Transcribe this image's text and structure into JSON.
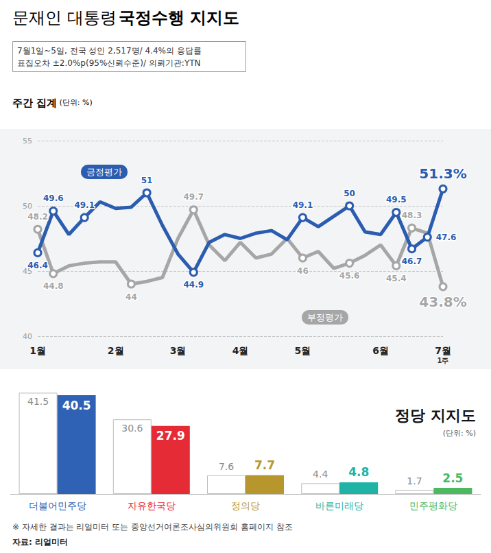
{
  "title_parts": [
    "문재인 대통령",
    "국정수행 지지도"
  ],
  "subtitle": [
    "7월1일~5일, 전국 성인 2,517명/ 4.4%의 응답률",
    "표집오차 ±2.0%p(95%신뢰수준)/ 의뢰기관:YTN"
  ],
  "chart_data": [
    {
      "type": "line",
      "title": "주간 집계",
      "unit": "(단위: %)",
      "categories": [
        "1월",
        null,
        null,
        null,
        null,
        "2월",
        null,
        null,
        null,
        "3월",
        null,
        null,
        null,
        "4월",
        null,
        null,
        null,
        "5월",
        null,
        null,
        null,
        null,
        "6월",
        null,
        null,
        null,
        "7월"
      ],
      "last_label_note": "1주",
      "ylim": [
        40,
        55
      ],
      "yticks": [
        40,
        45,
        50,
        55
      ],
      "grid": true,
      "data_labels": true,
      "series": [
        {
          "name": "긍정평가",
          "color": "#2a5cb0",
          "marker": "circle",
          "values": [
            46.4,
            49.6,
            47.8,
            49.1,
            50.3,
            49.8,
            49.9,
            51.0,
            48.5,
            46.3,
            44.9,
            47.2,
            47.8,
            47.5,
            47.9,
            48.1,
            47.4,
            49.1,
            48.4,
            49.2,
            50.0,
            48.0,
            47.8,
            49.5,
            46.7,
            47.6,
            51.3
          ],
          "value_labels": [
            "46.4",
            "49.6",
            null,
            "49.1",
            null,
            null,
            null,
            "51",
            null,
            null,
            "44.9",
            null,
            null,
            null,
            null,
            null,
            null,
            "49.1",
            null,
            null,
            "50",
            null,
            null,
            "49.5",
            "46.7",
            "47.6",
            "51.3%"
          ]
        },
        {
          "name": "부정평가",
          "color": "#a6a6a6",
          "marker": "circle",
          "values": [
            48.2,
            44.8,
            45.4,
            45.6,
            45.7,
            45.7,
            44.0,
            44.2,
            44.5,
            47.5,
            49.7,
            47.0,
            45.8,
            47.2,
            46.0,
            46.3,
            47.5,
            46.0,
            46.5,
            45.2,
            45.6,
            46.2,
            47.0,
            45.4,
            48.3,
            47.9,
            43.8
          ],
          "value_labels": [
            "48.2",
            "44.8",
            null,
            null,
            null,
            null,
            "44",
            null,
            null,
            null,
            "49.7",
            null,
            null,
            null,
            null,
            null,
            null,
            "46",
            null,
            null,
            "45.6",
            null,
            null,
            "45.4",
            "48.3",
            null,
            "43.8%"
          ]
        }
      ]
    },
    {
      "type": "bar",
      "title": "정당 지지도",
      "unit": "(단위: %)",
      "categories": [
        "더불어민주당",
        "자유한국당",
        "정의당",
        "바른미래당",
        "민주평화당"
      ],
      "ylim": [
        0,
        45
      ],
      "tick_labels": "x",
      "data_labels": true,
      "series": [
        {
          "color": "#ffffff",
          "values": [
            41.5,
            30.6,
            7.6,
            4.4,
            1.7
          ]
        },
        {
          "colors": [
            "#2f62b4",
            "#e52b36",
            "#b8962e",
            "#1fb3a5",
            "#4cb860"
          ],
          "values": [
            40.5,
            27.9,
            7.7,
            4.8,
            2.5
          ]
        }
      ]
    }
  ],
  "notes": [
    "※ 자세한 결과는 리얼미터 또는 중앙선거여론조사심의위원회 홈페이지 참조"
  ],
  "source": "자료: 리얼미터"
}
